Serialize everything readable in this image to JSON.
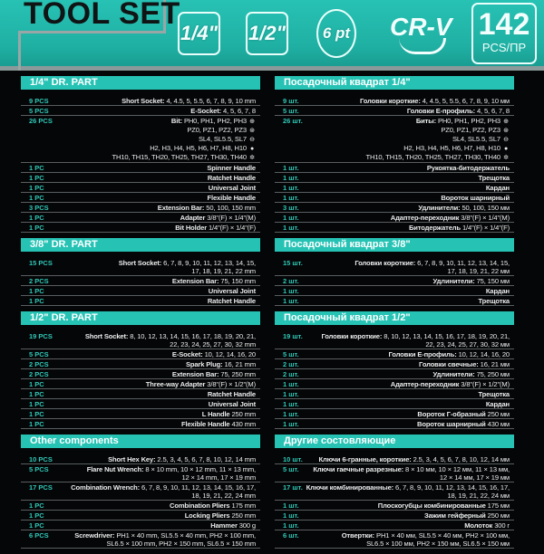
{
  "header": {
    "title": "TOOL SET",
    "badges": [
      "1/4\"",
      "1/2\"",
      "6 pt",
      "CR-V"
    ],
    "count": "142",
    "count_unit": "PCS/ПР"
  },
  "colors": {
    "accent": "#26c3b5",
    "qty": "#2ec8b8",
    "background": "#050607"
  },
  "left": [
    {
      "title": "1/4\" DR. PART",
      "items": [
        {
          "qty": "9 PCS",
          "label": "Short Socket:",
          "lines": [
            "4, 4.5, 5, 5.5, 6, 7, 8, 9, 10 mm"
          ]
        },
        {
          "qty": "5 PCS",
          "label": "E-Socket:",
          "lines": [
            "4, 5, 6, 7, 8"
          ]
        },
        {
          "qty": "26 PCS",
          "label": "Bit:",
          "lines": [
            "PH0, PH1, PH2, PH3",
            "PZ0, PZ1, PZ2, PZ3",
            "SL4, SL5.5, SL7",
            "H2, H3, H4, H5, H6, H7, H8, H10",
            "TH10, TH15, TH20, TH25, TH27, TH30, TH40"
          ],
          "icons": [
            "phillips-icon",
            "pozidriv-icon",
            "slotted-icon",
            "hex-icon",
            "torx-icon"
          ]
        },
        {
          "qty": "1 PC",
          "label": "Spinner Handle",
          "lines": [
            ""
          ]
        },
        {
          "qty": "1 PC",
          "label": "Ratchet Handle",
          "lines": [
            ""
          ]
        },
        {
          "qty": "1 PC",
          "label": "Universal Joint",
          "lines": [
            ""
          ]
        },
        {
          "qty": "1 PC",
          "label": "Flexible Handle",
          "lines": [
            ""
          ]
        },
        {
          "qty": "3 PCS",
          "label": "Extension Bar:",
          "lines": [
            "50, 100, 150 mm"
          ]
        },
        {
          "qty": "1 PC",
          "label": "Adapter",
          "lines": [
            "3/8\"(F) × 1/4\"(M)"
          ]
        },
        {
          "qty": "1 PC",
          "label": "Bit Holder",
          "lines": [
            "1/4\"(F) × 1/4\"(F)"
          ]
        }
      ]
    },
    {
      "title": "3/8\" DR. PART",
      "items": [
        {
          "qty": "15 PCS",
          "label": "Short Socket:",
          "lines": [
            "6, 7, 8, 9, 10, 11, 12, 13, 14, 15,",
            "17, 18, 19, 21, 22 mm"
          ]
        },
        {
          "qty": "2 PCS",
          "label": "Extension Bar:",
          "lines": [
            "75, 150 mm"
          ]
        },
        {
          "qty": "1 PC",
          "label": "Universal Joint",
          "lines": [
            ""
          ]
        },
        {
          "qty": "1 PC",
          "label": "Ratchet Handle",
          "lines": [
            ""
          ]
        }
      ]
    },
    {
      "title": "1/2\" DR. PART",
      "items": [
        {
          "qty": "19 PCS",
          "label": "Short Socket:",
          "lines": [
            "8, 10, 12, 13, 14, 15, 16, 17, 18, 19, 20, 21,",
            "22, 23, 24, 25, 27, 30, 32 mm"
          ]
        },
        {
          "qty": "5 PCS",
          "label": "E-Socket:",
          "lines": [
            "10, 12, 14, 16, 20"
          ]
        },
        {
          "qty": "2 PCS",
          "label": "Spark Plug:",
          "lines": [
            "16, 21 mm"
          ]
        },
        {
          "qty": "2 PCS",
          "label": "Extension Bar:",
          "lines": [
            "75, 250 mm"
          ]
        },
        {
          "qty": "1 PC",
          "label": "Three-way Adapter",
          "lines": [
            "3/8\"(F) × 1/2\"(M)"
          ]
        },
        {
          "qty": "1 PC",
          "label": "Ratchet Handle",
          "lines": [
            ""
          ]
        },
        {
          "qty": "1 PC",
          "label": "Universal Joint",
          "lines": [
            ""
          ]
        },
        {
          "qty": "1 PC",
          "label": "L Handle",
          "lines": [
            "250 mm"
          ]
        },
        {
          "qty": "1 PC",
          "label": "Flexible Handle",
          "lines": [
            "430 mm"
          ]
        }
      ]
    },
    {
      "title": "Other components",
      "items": [
        {
          "qty": "10 PCS",
          "label": "Short Hex Key:",
          "lines": [
            "2.5, 3, 4, 5, 6, 7, 8, 10, 12, 14 mm"
          ]
        },
        {
          "qty": "5 PCS",
          "label": "Flare Nut Wrench:",
          "lines": [
            "8 × 10 mm, 10 × 12 mm, 11 × 13 mm,",
            "12 × 14 mm, 17 × 19 mm"
          ]
        },
        {
          "qty": "17 PCS",
          "label": "Combination Wrench:",
          "lines": [
            "6, 7, 8, 9, 10, 11, 12, 13, 14, 15, 16, 17,",
            "18, 19, 21, 22, 24 mm"
          ]
        },
        {
          "qty": "1 PC",
          "label": "Combination Pliers",
          "lines": [
            "175 mm"
          ]
        },
        {
          "qty": "1 PC",
          "label": "Locking Pliers",
          "lines": [
            "250 mm"
          ]
        },
        {
          "qty": "1 PC",
          "label": "Hammer",
          "lines": [
            "300 g"
          ]
        },
        {
          "qty": "6 PCS",
          "label": "Screwdriver:",
          "lines": [
            "PH1 × 40 mm, SL5.5 × 40 mm, PH2 × 100 mm,",
            "SL6.5 × 100 mm, PH2 × 150 mm, SL6.5 × 150 mm"
          ]
        }
      ]
    }
  ],
  "right": [
    {
      "title": "Посадочный квадрат 1/4\"",
      "items": [
        {
          "qty": "9 шт.",
          "label": "Головки короткие:",
          "lines": [
            "4, 4.5, 5, 5.5, 6, 7, 8, 9, 10 мм"
          ]
        },
        {
          "qty": "5 шт.",
          "label": "Головки E-профиль:",
          "lines": [
            "4, 5, 6, 7, 8"
          ]
        },
        {
          "qty": "26 шт.",
          "label": "Биты:",
          "lines": [
            "PH0, PH1, PH2, PH3",
            "PZ0, PZ1, PZ2, PZ3",
            "SL4, SL5.5, SL7",
            "H2, H3, H4, H5, H6, H7, H8, H10",
            "TH10, TH15, TH20, TH25, TH27, TH30, TH40"
          ],
          "icons": [
            "phillips-icon",
            "pozidriv-icon",
            "slotted-icon",
            "hex-icon",
            "torx-icon"
          ]
        },
        {
          "qty": "1 шт.",
          "label": "Рукоятка-битодержатель",
          "lines": [
            ""
          ]
        },
        {
          "qty": "1 шт.",
          "label": "Трещотка",
          "lines": [
            ""
          ]
        },
        {
          "qty": "1 шт.",
          "label": "Кардан",
          "lines": [
            ""
          ]
        },
        {
          "qty": "1 шт.",
          "label": "Вороток шарнирный",
          "lines": [
            ""
          ]
        },
        {
          "qty": "3 шт.",
          "label": "Удлинители:",
          "lines": [
            "50, 100, 150 мм"
          ]
        },
        {
          "qty": "1 шт.",
          "label": "Адаптер-переходник",
          "lines": [
            "3/8\"(F) × 1/4\"(M)"
          ]
        },
        {
          "qty": "1 шт.",
          "label": "Битодержатель",
          "lines": [
            "1/4\"(F) × 1/4\"(F)"
          ]
        }
      ]
    },
    {
      "title": "Посадочный квадрат 3/8\"",
      "items": [
        {
          "qty": "15 шт.",
          "label": "Головки короткие:",
          "lines": [
            "6, 7, 8, 9, 10, 11, 12, 13, 14, 15,",
            "17, 18, 19, 21, 22 мм"
          ]
        },
        {
          "qty": "2 шт.",
          "label": "Удлинители:",
          "lines": [
            "75, 150 мм"
          ]
        },
        {
          "qty": "1 шт.",
          "label": "Кардан",
          "lines": [
            ""
          ]
        },
        {
          "qty": "1 шт.",
          "label": "Трещотка",
          "lines": [
            ""
          ]
        }
      ]
    },
    {
      "title": "Посадочный квадрат 1/2\"",
      "items": [
        {
          "qty": "19 шт.",
          "label": "Головки короткие:",
          "lines": [
            "8, 10, 12, 13, 14, 15, 16, 17, 18, 19, 20, 21,",
            "22, 23, 24, 25, 27, 30, 32 мм"
          ]
        },
        {
          "qty": "5 шт.",
          "label": "Головки E-профиль:",
          "lines": [
            "10, 12, 14, 16, 20"
          ]
        },
        {
          "qty": "2 шт.",
          "label": "Головки свечные:",
          "lines": [
            "16, 21 мм"
          ]
        },
        {
          "qty": "2 шт.",
          "label": "Удлинители:",
          "lines": [
            "75, 250 мм"
          ]
        },
        {
          "qty": "1 шт.",
          "label": "Адаптер-переходник",
          "lines": [
            "3/8\"(F) × 1/2\"(M)"
          ]
        },
        {
          "qty": "1 шт.",
          "label": "Трещотка",
          "lines": [
            ""
          ]
        },
        {
          "qty": "1 шт.",
          "label": "Кардан",
          "lines": [
            ""
          ]
        },
        {
          "qty": "1 шт.",
          "label": "Вороток Г-образный",
          "lines": [
            "250 мм"
          ]
        },
        {
          "qty": "1 шт.",
          "label": "Вороток шарнирный",
          "lines": [
            "430 мм"
          ]
        }
      ]
    },
    {
      "title": "Другие состовляющие",
      "items": [
        {
          "qty": "10 шт.",
          "label": "Ключи 6-гранные, короткие:",
          "lines": [
            "2.5, 3, 4, 5, 6, 7, 8, 10, 12, 14 мм"
          ]
        },
        {
          "qty": "5 шт.",
          "label": "Ключи гаечные разрезные:",
          "lines": [
            "8 × 10 мм, 10 × 12 мм, 11 × 13 мм,",
            "12 × 14 мм, 17 × 19 мм"
          ]
        },
        {
          "qty": "17 шт.",
          "label": "Ключи комбинированные:",
          "lines": [
            "6, 7, 8, 9, 10, 11, 12, 13, 14, 15, 16, 17,",
            "18, 19, 21, 22, 24 мм"
          ]
        },
        {
          "qty": "1 шт.",
          "label": "Плоскогубцы комбинированные",
          "lines": [
            "175 мм"
          ]
        },
        {
          "qty": "1 шт.",
          "label": "Зажим гейферный",
          "lines": [
            "250 мм"
          ]
        },
        {
          "qty": "1 шт.",
          "label": "Молоток",
          "lines": [
            "300 г"
          ]
        },
        {
          "qty": "6 шт.",
          "label": "Отвертки:",
          "lines": [
            "PH1 × 40 мм, SL5.5 × 40 мм, PH2 × 100 мм,",
            "SL6.5 × 100 мм, PH2 × 150 мм, SL6.5 × 150 мм"
          ]
        }
      ]
    }
  ]
}
